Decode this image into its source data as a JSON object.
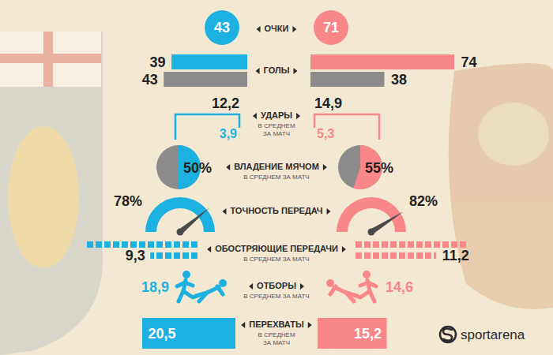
{
  "chart_data": [
    {
      "type": "circles",
      "title": "ОЧКИ",
      "values": [
        43,
        71
      ],
      "colors": [
        "#1db1e2",
        "#f9878a"
      ],
      "data_labels": true
    },
    {
      "type": "bar",
      "orientation": "horizontal",
      "title": "ГОЛЫ",
      "series": [
        {
          "colors": [
            "#1db1e2",
            "#f9878a"
          ],
          "values": [
            39,
            74
          ]
        },
        {
          "color": "#8b8b8b",
          "values": [
            43,
            38
          ]
        }
      ],
      "data_labels": true,
      "tick_labels": false
    },
    {
      "type": "bracket",
      "title": "УДАРЫ",
      "subtitle": "В СРЕДНЕМ ЗА МАТЧ",
      "series": [
        {
          "color": "#222222",
          "values": [
            12.2,
            14.9
          ],
          "value_labels": [
            "12,2",
            "14,9"
          ]
        },
        {
          "colors": [
            "#1db1e2",
            "#f9878a"
          ],
          "values": [
            3.9,
            5.3
          ],
          "value_labels": [
            "3,9",
            "5,3"
          ]
        }
      ],
      "data_labels": true
    },
    {
      "type": "pie",
      "title": "ВЛАДЕНИЕ МЯЧОМ",
      "subtitle": "В СРЕДНЕМ ЗА МАТЧ",
      "values": [
        50,
        55
      ],
      "value_labels": [
        "50%",
        "55%"
      ],
      "colors": [
        "#1db1e2",
        "#f9878a"
      ],
      "data_labels": true
    },
    {
      "type": "gauge",
      "title": "ТОЧНОСТЬ ПЕРЕДАЧ",
      "values": [
        78,
        82
      ],
      "value_labels": [
        "78%",
        "82%"
      ],
      "colors": [
        "#1db1e2",
        "#f9878a"
      ],
      "data_labels": true
    },
    {
      "type": "squares",
      "title": "ОБОСТРЯЮЩИЕ ПЕРЕДАЧИ",
      "subtitle": "В СРЕДНЕМ ЗА МАТЧ",
      "values": [
        9.3,
        11.2
      ],
      "value_labels": [
        "9,3",
        "11,2"
      ],
      "colors": [
        "#1db1e2",
        "#f9878a"
      ],
      "data_labels": true
    },
    {
      "type": "icons",
      "title": "ОТБОРЫ",
      "subtitle": "В СРЕДНЕМ ЗА МАТЧ",
      "values": [
        18.9,
        14.6
      ],
      "value_labels": [
        "18,9",
        "14,6"
      ],
      "colors": [
        "#1db1e2",
        "#f9878a"
      ],
      "data_labels": true
    },
    {
      "type": "bar",
      "orientation": "horizontal",
      "title": "ПЕРЕХВАТЫ",
      "subtitle": "В СРЕДНЕМ ЗА МАТЧ",
      "values": [
        20.5,
        15.2
      ],
      "value_labels": [
        "20,5",
        "15,2"
      ],
      "colors": [
        "#1db1e2",
        "#f9878a"
      ],
      "data_labels": true,
      "tick_labels": false
    }
  ],
  "source": "sportarena"
}
